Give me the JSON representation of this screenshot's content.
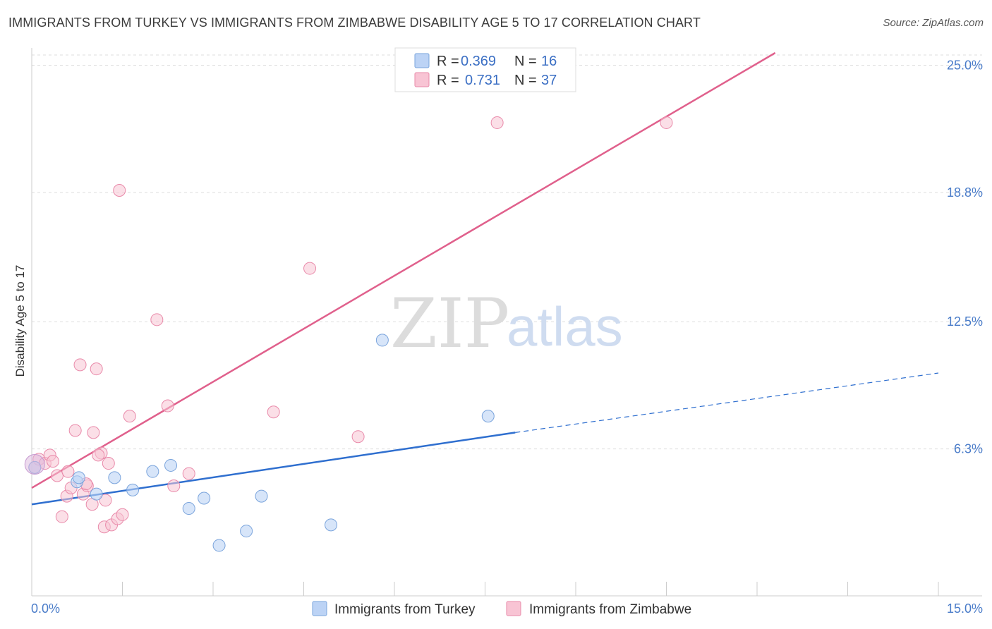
{
  "title": "IMMIGRANTS FROM TURKEY VS IMMIGRANTS FROM ZIMBABWE DISABILITY AGE 5 TO 17 CORRELATION CHART",
  "source": "Source: ZipAtlas.com",
  "watermark": {
    "zip": "ZIP",
    "atlas": "atlas"
  },
  "colors": {
    "turkey_fill": "#bcd3f5",
    "turkey_stroke": "#7aa4dc",
    "turkey_line": "#2f6fcf",
    "zimbabwe_fill": "#f8c4d4",
    "zimbabwe_stroke": "#e98aaa",
    "zimbabwe_line": "#e0608c",
    "grid": "#dddddd",
    "tick_label": "#4a7cc9"
  },
  "legend": {
    "r_label": "R =",
    "n_label": "N =",
    "turkey": {
      "r": "0.369",
      "n": "16"
    },
    "zimbabwe": {
      "r": "0.731",
      "n": "37"
    }
  },
  "chart_data": {
    "type": "scatter",
    "title": "IMMIGRANTS FROM TURKEY VS IMMIGRANTS FROM ZIMBABWE DISABILITY AGE 5 TO 17 CORRELATION CHART",
    "xlabel": "",
    "ylabel": "Disability Age 5 to 17",
    "xlim": [
      0,
      15
    ],
    "ylim": [
      0.0,
      25.6
    ],
    "x_tick_labels": [
      "0.0%",
      "15.0%"
    ],
    "y_ticks": [
      6.3,
      12.5,
      18.8,
      25.0
    ],
    "y_tick_labels": [
      "6.3%",
      "12.5%",
      "18.8%",
      "25.0%"
    ],
    "grid": true,
    "legend_position": "top-center",
    "series": [
      {
        "name": "Immigrants from Turkey",
        "points": [
          [
            0.05,
            5.4
          ],
          [
            0.75,
            4.7
          ],
          [
            0.78,
            4.9
          ],
          [
            1.07,
            4.1
          ],
          [
            1.37,
            4.9
          ],
          [
            1.67,
            4.3
          ],
          [
            2.0,
            5.2
          ],
          [
            2.3,
            5.5
          ],
          [
            2.6,
            3.4
          ],
          [
            2.85,
            3.9
          ],
          [
            3.1,
            1.6
          ],
          [
            3.55,
            2.3
          ],
          [
            3.8,
            4.0
          ],
          [
            4.95,
            2.6
          ],
          [
            5.8,
            11.6
          ],
          [
            7.55,
            7.9
          ]
        ],
        "trend": {
          "x0": 0.0,
          "y0": 3.6,
          "x1": 8.0,
          "y1": 7.1,
          "dashed_to_x": 15.0,
          "dashed_to_y": 10.0
        }
      },
      {
        "name": "Immigrants from Zimbabwe",
        "points": [
          [
            0.05,
            5.4
          ],
          [
            0.12,
            5.8
          ],
          [
            0.22,
            5.6
          ],
          [
            0.3,
            6.0
          ],
          [
            0.35,
            5.7
          ],
          [
            0.42,
            5.0
          ],
          [
            0.5,
            3.0
          ],
          [
            0.58,
            4.0
          ],
          [
            0.65,
            4.4
          ],
          [
            0.72,
            7.2
          ],
          [
            0.8,
            10.4
          ],
          [
            0.85,
            4.1
          ],
          [
            0.92,
            4.5
          ],
          [
            1.0,
            3.6
          ],
          [
            1.02,
            7.1
          ],
          [
            1.07,
            10.2
          ],
          [
            1.15,
            6.1
          ],
          [
            1.22,
            3.8
          ],
          [
            1.27,
            5.6
          ],
          [
            1.2,
            2.5
          ],
          [
            1.32,
            2.6
          ],
          [
            1.42,
            2.9
          ],
          [
            1.5,
            3.1
          ],
          [
            1.45,
            18.9
          ],
          [
            1.62,
            7.9
          ],
          [
            2.07,
            12.6
          ],
          [
            2.25,
            8.4
          ],
          [
            2.35,
            4.5
          ],
          [
            2.6,
            5.1
          ],
          [
            4.0,
            8.1
          ],
          [
            4.6,
            15.1
          ],
          [
            5.4,
            6.9
          ],
          [
            7.7,
            22.2
          ],
          [
            10.5,
            22.2
          ],
          [
            0.9,
            4.6
          ],
          [
            0.6,
            5.2
          ],
          [
            1.1,
            6.0
          ]
        ],
        "trend": {
          "x0": 0.0,
          "y0": 4.4,
          "x1": 12.3,
          "y1": 25.6
        }
      }
    ]
  }
}
